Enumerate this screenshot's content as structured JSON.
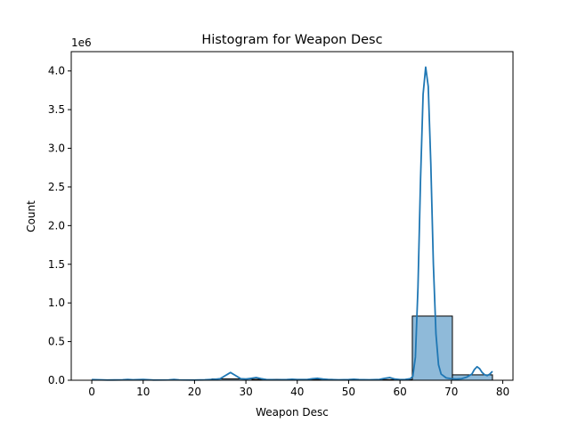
{
  "chart_data": {
    "type": "bar",
    "title": "Histogram for Weapon Desc",
    "xlabel": "Weapon Desc",
    "ylabel": "Count",
    "y_scale_label": "1e6",
    "xlim": [
      -4,
      82
    ],
    "ylim": [
      0,
      4250000
    ],
    "x_ticks": [
      0,
      10,
      20,
      30,
      40,
      50,
      60,
      70,
      80
    ],
    "x_tick_labels": [
      "0",
      "10",
      "20",
      "30",
      "40",
      "50",
      "60",
      "70",
      "80"
    ],
    "y_ticks": [
      0,
      500000,
      1000000,
      1500000,
      2000000,
      2500000,
      3000000,
      3500000,
      4000000
    ],
    "y_tick_labels": [
      "0.0",
      "0.5",
      "1.0",
      "1.5",
      "2.0",
      "2.5",
      "3.0",
      "3.5",
      "4.0"
    ],
    "bins": [
      {
        "x0": 0.0,
        "x1": 7.8,
        "count": 2000
      },
      {
        "x0": 7.8,
        "x1": 15.6,
        "count": 3000
      },
      {
        "x0": 15.6,
        "x1": 23.4,
        "count": 5000
      },
      {
        "x0": 23.4,
        "x1": 31.2,
        "count": 18000
      },
      {
        "x0": 31.2,
        "x1": 39.0,
        "count": 12000
      },
      {
        "x0": 39.0,
        "x1": 46.8,
        "count": 12000
      },
      {
        "x0": 46.8,
        "x1": 54.6,
        "count": 6000
      },
      {
        "x0": 54.6,
        "x1": 62.4,
        "count": 8000
      },
      {
        "x0": 62.4,
        "x1": 70.2,
        "count": 830000
      },
      {
        "x0": 70.2,
        "x1": 78.0,
        "count": 70000
      }
    ],
    "kde": {
      "x": [
        0,
        3,
        6,
        7,
        8,
        10,
        12,
        15,
        16,
        17,
        20,
        22,
        24,
        25,
        26,
        27,
        28,
        29,
        30,
        31,
        32,
        33,
        34,
        36,
        38,
        39,
        40,
        42,
        43,
        44,
        45,
        46,
        48,
        50,
        51,
        52,
        54,
        56,
        57,
        58,
        59,
        60,
        61,
        62,
        62.5,
        63,
        63.5,
        64,
        64.5,
        65,
        65.5,
        66,
        66.5,
        67,
        67.5,
        68,
        69,
        70,
        71,
        72,
        73,
        74,
        74.5,
        75,
        75.5,
        76,
        76.5,
        77,
        77.5,
        78
      ],
      "y": [
        8000,
        3000,
        5000,
        10000,
        5000,
        10000,
        3000,
        4000,
        10000,
        4000,
        3000,
        5000,
        12000,
        20000,
        60000,
        100000,
        60000,
        20000,
        15000,
        25000,
        35000,
        20000,
        8000,
        5000,
        8000,
        12000,
        8000,
        10000,
        20000,
        25000,
        15000,
        10000,
        5000,
        8000,
        12000,
        8000,
        5000,
        10000,
        25000,
        35000,
        15000,
        8000,
        10000,
        20000,
        50000,
        300000,
        1200000,
        2600000,
        3700000,
        4050000,
        3800000,
        2800000,
        1500000,
        600000,
        200000,
        80000,
        30000,
        20000,
        15000,
        20000,
        40000,
        80000,
        140000,
        175000,
        150000,
        100000,
        70000,
        60000,
        80000,
        115000
      ]
    },
    "colors": {
      "bar_fill": "#8fbad9",
      "bar_edge": "#000000",
      "line": "#1f77b4",
      "axes": "#000000"
    },
    "grid": false,
    "legend": "none"
  }
}
